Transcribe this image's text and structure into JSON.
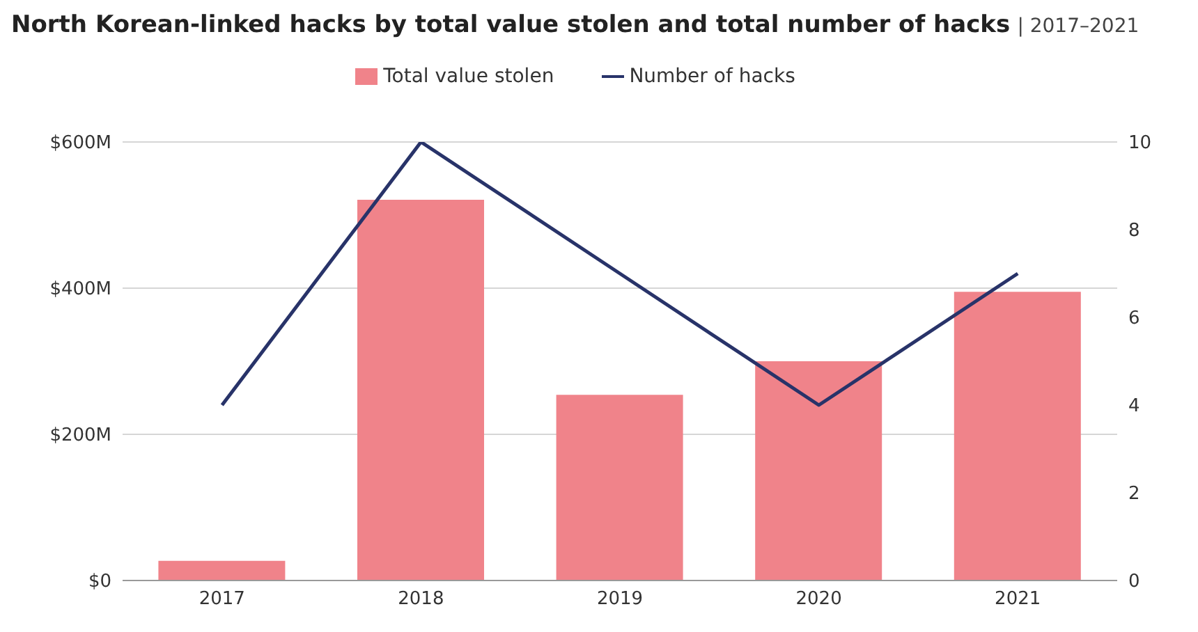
{
  "chart_data": {
    "type": "bar",
    "title": "North Korean-linked hacks by total value stolen and total number of hacks",
    "subtitle": "| 2017–2021",
    "categories": [
      "2017",
      "2018",
      "2019",
      "2020",
      "2021"
    ],
    "series": [
      {
        "name": "Total value stolen",
        "color": "#f0838a",
        "values": [
          27,
          521,
          254,
          300,
          395
        ]
      },
      {
        "name": "Number of hacks",
        "type": "line",
        "axis": "y2",
        "color": "#283369",
        "values": [
          4,
          10,
          7,
          4,
          7
        ]
      }
    ],
    "ylim": [
      0,
      600
    ],
    "yticks": [
      {
        "value": 0,
        "label": "$0"
      },
      {
        "value": 200,
        "label": "$200M"
      },
      {
        "value": 400,
        "label": "$400M"
      },
      {
        "value": 600,
        "label": "$600M"
      }
    ],
    "y2lim": [
      0,
      10
    ],
    "y2ticks": [
      0,
      2,
      4,
      6,
      8,
      10
    ],
    "grid": "y",
    "legend": "top",
    "marker": "none"
  }
}
